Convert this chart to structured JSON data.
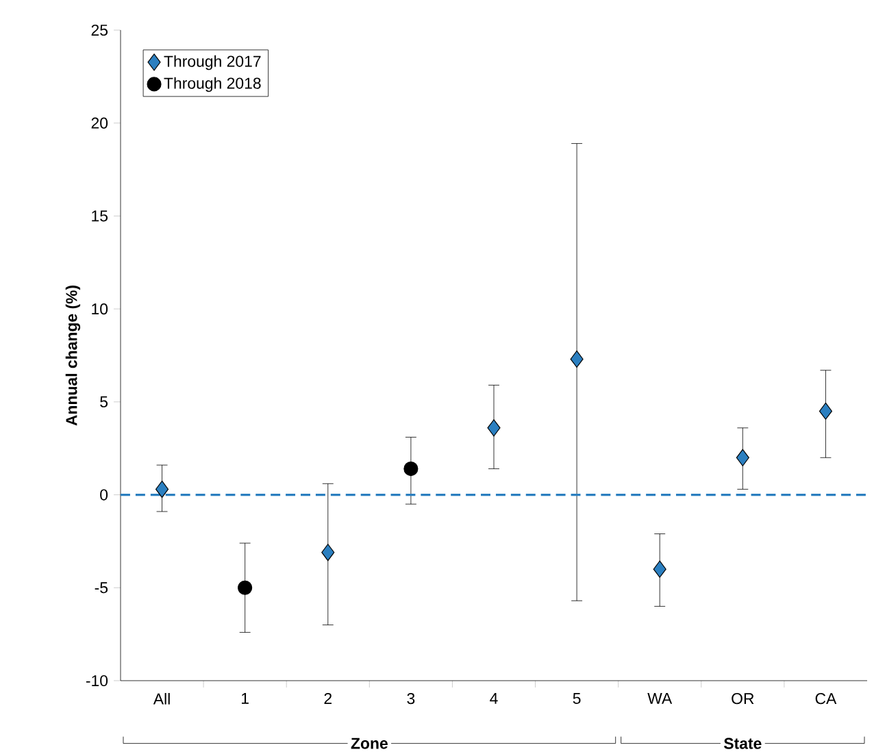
{
  "chart_data": {
    "type": "scatter",
    "ylabel": "Annual change (%)",
    "categories": [
      "All",
      "1",
      "2",
      "3",
      "4",
      "5",
      "WA",
      "OR",
      "CA"
    ],
    "series": [
      {
        "name": "Through 2017",
        "color": "#2b7fc0",
        "marker": "diamond",
        "values": [
          0.3,
          null,
          -3.1,
          null,
          3.6,
          7.3,
          -4.0,
          2.0,
          4.5
        ],
        "errors": [
          [
            -0.9,
            1.6
          ],
          null,
          [
            -7.0,
            0.6
          ],
          null,
          [
            1.4,
            5.9
          ],
          [
            -5.7,
            18.9
          ],
          [
            -6.0,
            -2.1
          ],
          [
            0.3,
            3.6
          ],
          [
            2.0,
            6.7
          ]
        ]
      },
      {
        "name": "Through 2018",
        "color": "#000000",
        "marker": "circle",
        "values": [
          null,
          -5.0,
          null,
          1.4,
          null,
          null,
          null,
          null,
          null
        ],
        "errors": [
          null,
          [
            -7.4,
            -2.6
          ],
          null,
          [
            -0.5,
            3.1
          ],
          null,
          null,
          null,
          null,
          null
        ]
      }
    ],
    "ylim": [
      -10,
      25
    ],
    "yticks": [
      -10,
      -5,
      0,
      5,
      10,
      15,
      20,
      25
    ],
    "ref_lines": [
      {
        "axis": "y",
        "value": 0,
        "color": "#2b7fc0",
        "line_style": "dashed"
      }
    ],
    "legend": "top left",
    "annotations": [
      "Zone",
      "State"
    ]
  }
}
